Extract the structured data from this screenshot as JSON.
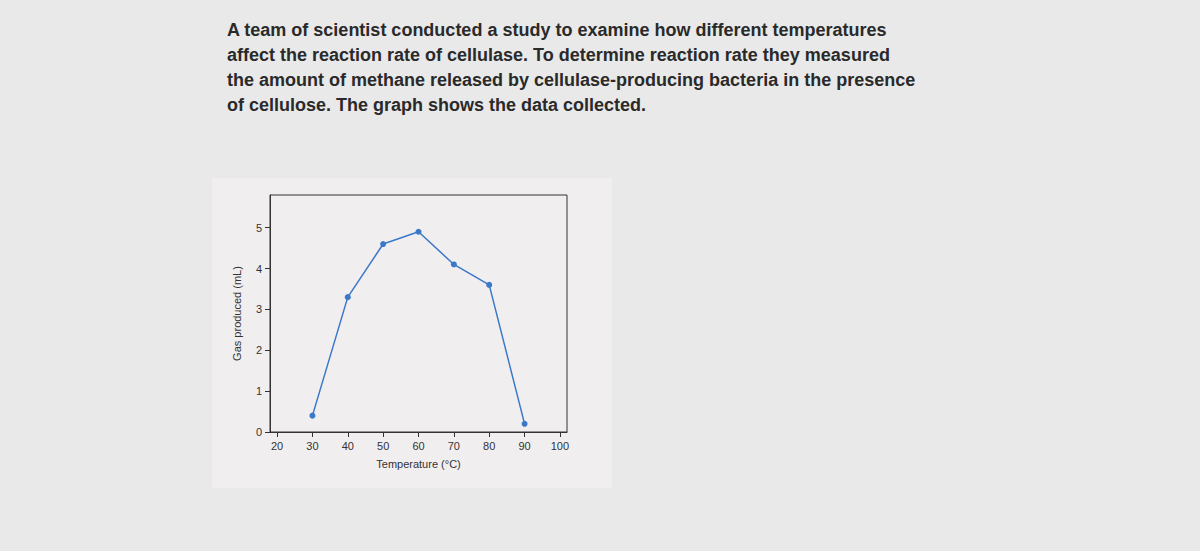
{
  "chart_data": {
    "type": "line",
    "title": "A team of scientist conducted a study to examine how different temperatures\naffect the reaction rate of cellulase. To determine reaction rate they measured\nthe amount of methane released by cellulase-producing bacteria in the presence\nof cellulose. The graph shows the data collected.",
    "x_label": "Temperature (°C)",
    "y_label": "Gas produced (mL)",
    "x": [
      30,
      40,
      50,
      60,
      70,
      80,
      90
    ],
    "values": [
      0.4,
      3.3,
      4.6,
      4.9,
      4.1,
      3.6,
      0.2
    ],
    "color": "#3b78c9",
    "marker": "circle",
    "xlim": [
      18,
      102
    ],
    "xticks": [
      20,
      30,
      40,
      50,
      60,
      70,
      80,
      90,
      100
    ],
    "ylim": [
      0,
      5.8
    ],
    "yticks": [
      0,
      1,
      2,
      3,
      4,
      5
    ],
    "grid": false
  }
}
